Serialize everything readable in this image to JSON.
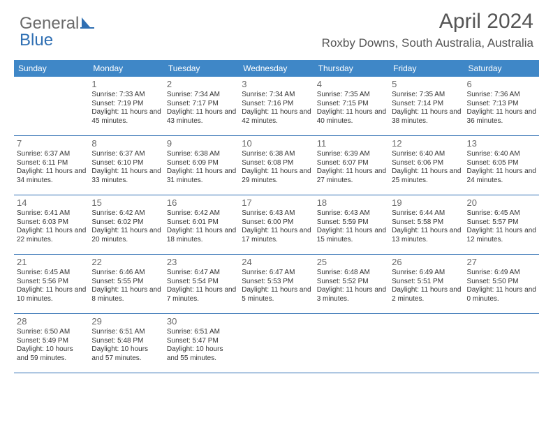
{
  "logo": {
    "text1": "General",
    "text2": "Blue"
  },
  "title": "April 2024",
  "location": "Roxby Downs, South Australia, Australia",
  "colors": {
    "header_bg": "#3f87c7",
    "border": "#2f6fb3",
    "text": "#333333",
    "muted": "#6a6a6a",
    "logo_blue": "#2f6fb3"
  },
  "dayNames": [
    "Sunday",
    "Monday",
    "Tuesday",
    "Wednesday",
    "Thursday",
    "Friday",
    "Saturday"
  ],
  "weeks": [
    [
      null,
      {
        "n": "1",
        "sr": "7:33 AM",
        "ss": "7:19 PM",
        "dl": "11 hours and 45 minutes."
      },
      {
        "n": "2",
        "sr": "7:34 AM",
        "ss": "7:17 PM",
        "dl": "11 hours and 43 minutes."
      },
      {
        "n": "3",
        "sr": "7:34 AM",
        "ss": "7:16 PM",
        "dl": "11 hours and 42 minutes."
      },
      {
        "n": "4",
        "sr": "7:35 AM",
        "ss": "7:15 PM",
        "dl": "11 hours and 40 minutes."
      },
      {
        "n": "5",
        "sr": "7:35 AM",
        "ss": "7:14 PM",
        "dl": "11 hours and 38 minutes."
      },
      {
        "n": "6",
        "sr": "7:36 AM",
        "ss": "7:13 PM",
        "dl": "11 hours and 36 minutes."
      }
    ],
    [
      {
        "n": "7",
        "sr": "6:37 AM",
        "ss": "6:11 PM",
        "dl": "11 hours and 34 minutes."
      },
      {
        "n": "8",
        "sr": "6:37 AM",
        "ss": "6:10 PM",
        "dl": "11 hours and 33 minutes."
      },
      {
        "n": "9",
        "sr": "6:38 AM",
        "ss": "6:09 PM",
        "dl": "11 hours and 31 minutes."
      },
      {
        "n": "10",
        "sr": "6:38 AM",
        "ss": "6:08 PM",
        "dl": "11 hours and 29 minutes."
      },
      {
        "n": "11",
        "sr": "6:39 AM",
        "ss": "6:07 PM",
        "dl": "11 hours and 27 minutes."
      },
      {
        "n": "12",
        "sr": "6:40 AM",
        "ss": "6:06 PM",
        "dl": "11 hours and 25 minutes."
      },
      {
        "n": "13",
        "sr": "6:40 AM",
        "ss": "6:05 PM",
        "dl": "11 hours and 24 minutes."
      }
    ],
    [
      {
        "n": "14",
        "sr": "6:41 AM",
        "ss": "6:03 PM",
        "dl": "11 hours and 22 minutes."
      },
      {
        "n": "15",
        "sr": "6:42 AM",
        "ss": "6:02 PM",
        "dl": "11 hours and 20 minutes."
      },
      {
        "n": "16",
        "sr": "6:42 AM",
        "ss": "6:01 PM",
        "dl": "11 hours and 18 minutes."
      },
      {
        "n": "17",
        "sr": "6:43 AM",
        "ss": "6:00 PM",
        "dl": "11 hours and 17 minutes."
      },
      {
        "n": "18",
        "sr": "6:43 AM",
        "ss": "5:59 PM",
        "dl": "11 hours and 15 minutes."
      },
      {
        "n": "19",
        "sr": "6:44 AM",
        "ss": "5:58 PM",
        "dl": "11 hours and 13 minutes."
      },
      {
        "n": "20",
        "sr": "6:45 AM",
        "ss": "5:57 PM",
        "dl": "11 hours and 12 minutes."
      }
    ],
    [
      {
        "n": "21",
        "sr": "6:45 AM",
        "ss": "5:56 PM",
        "dl": "11 hours and 10 minutes."
      },
      {
        "n": "22",
        "sr": "6:46 AM",
        "ss": "5:55 PM",
        "dl": "11 hours and 8 minutes."
      },
      {
        "n": "23",
        "sr": "6:47 AM",
        "ss": "5:54 PM",
        "dl": "11 hours and 7 minutes."
      },
      {
        "n": "24",
        "sr": "6:47 AM",
        "ss": "5:53 PM",
        "dl": "11 hours and 5 minutes."
      },
      {
        "n": "25",
        "sr": "6:48 AM",
        "ss": "5:52 PM",
        "dl": "11 hours and 3 minutes."
      },
      {
        "n": "26",
        "sr": "6:49 AM",
        "ss": "5:51 PM",
        "dl": "11 hours and 2 minutes."
      },
      {
        "n": "27",
        "sr": "6:49 AM",
        "ss": "5:50 PM",
        "dl": "11 hours and 0 minutes."
      }
    ],
    [
      {
        "n": "28",
        "sr": "6:50 AM",
        "ss": "5:49 PM",
        "dl": "10 hours and 59 minutes."
      },
      {
        "n": "29",
        "sr": "6:51 AM",
        "ss": "5:48 PM",
        "dl": "10 hours and 57 minutes."
      },
      {
        "n": "30",
        "sr": "6:51 AM",
        "ss": "5:47 PM",
        "dl": "10 hours and 55 minutes."
      },
      null,
      null,
      null,
      null
    ]
  ],
  "labels": {
    "sunrise": "Sunrise:",
    "sunset": "Sunset:",
    "daylight": "Daylight:"
  }
}
